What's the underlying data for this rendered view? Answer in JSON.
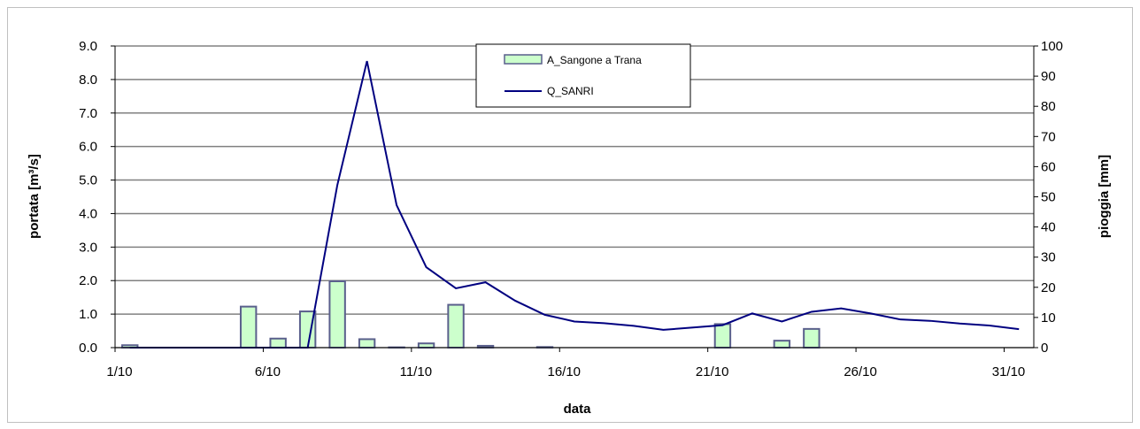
{
  "chart_data": {
    "type": "bar+line",
    "xlabel": "data",
    "ylabel_left": "portata [m³/s]",
    "ylabel_right": "pioggia [mm]",
    "ylim_left": [
      0,
      9
    ],
    "ylim_right": [
      0,
      100
    ],
    "yticks_left": [
      "0.0",
      "1.0",
      "2.0",
      "3.0",
      "4.0",
      "5.0",
      "6.0",
      "7.0",
      "8.0",
      "9.0"
    ],
    "yticks_right": [
      "0",
      "10",
      "20",
      "30",
      "40",
      "50",
      "60",
      "70",
      "80",
      "90",
      "100"
    ],
    "xlim": [
      1,
      32
    ],
    "xticks": [
      {
        "day": 1,
        "label": "1/10"
      },
      {
        "day": 6,
        "label": "6/10"
      },
      {
        "day": 11,
        "label": "11/10"
      },
      {
        "day": 16,
        "label": "16/10"
      },
      {
        "day": 21,
        "label": "21/10"
      },
      {
        "day": 26,
        "label": "26/10"
      },
      {
        "day": 31,
        "label": "31/10"
      }
    ],
    "grid": true,
    "legend_position": "top-center",
    "series": [
      {
        "name": "A_Sangone a Trana",
        "type": "bar",
        "axis": "right",
        "color": "#ccffcc",
        "edge": "#5a5f8c",
        "x": [
          1,
          2,
          3,
          4,
          5,
          6,
          7,
          8,
          9,
          10,
          11,
          12,
          13,
          14,
          15,
          16,
          17,
          18,
          19,
          20,
          21,
          22,
          23,
          24,
          25,
          26,
          27,
          28,
          29,
          30,
          31
        ],
        "values": [
          0.8,
          0,
          0,
          0,
          13.6,
          3.0,
          12.0,
          22.0,
          2.8,
          0.1,
          1.4,
          14.2,
          0.6,
          0,
          0.2,
          0,
          0,
          0,
          0,
          0,
          7.8,
          0,
          2.3,
          6.2,
          0,
          0,
          0,
          0,
          0,
          0,
          0
        ]
      },
      {
        "name": "Q_SANRI",
        "type": "line",
        "axis": "left",
        "color": "#000080",
        "x": [
          1.5,
          2.5,
          3.5,
          4.5,
          5.5,
          6.5,
          7.5,
          8.5,
          9.5,
          10.5,
          11.5,
          12.5,
          13.5,
          14.5,
          15.5,
          16.5,
          17.5,
          18.5,
          19.5,
          20.5,
          21.5,
          22.5,
          23.5,
          24.5,
          25.5,
          26.5,
          27.5,
          28.5,
          29.5,
          30.5,
          31.5
        ],
        "values": [
          0,
          0,
          0,
          0,
          0,
          0,
          0,
          4.85,
          8.55,
          4.25,
          2.4,
          1.77,
          1.95,
          1.4,
          0.98,
          0.78,
          0.73,
          0.65,
          0.53,
          0.6,
          0.67,
          1.02,
          0.78,
          1.07,
          1.17,
          1.02,
          0.84,
          0.8,
          0.72,
          0.66,
          0.55
        ]
      }
    ]
  }
}
